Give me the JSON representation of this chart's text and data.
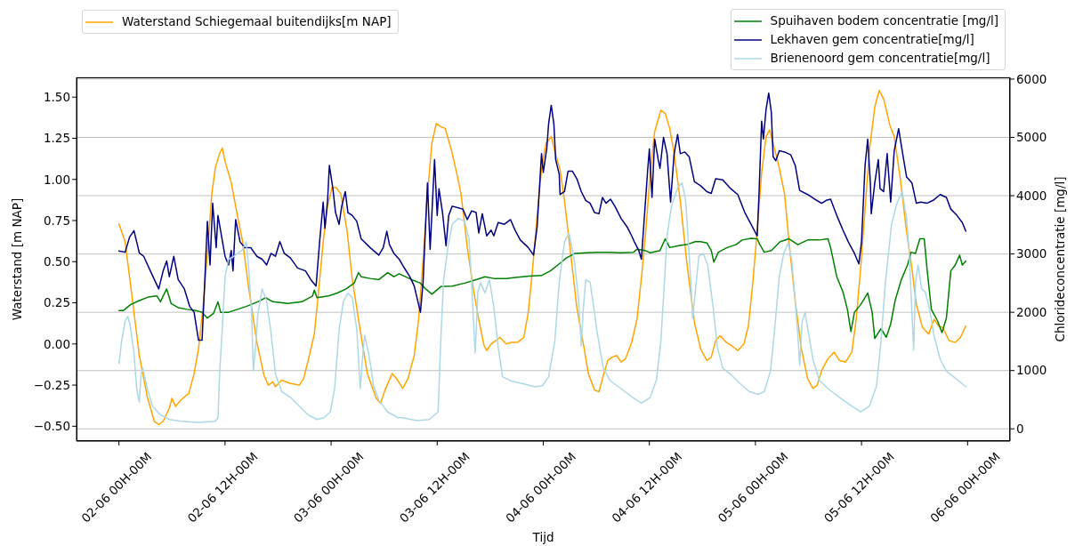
{
  "chart_data": {
    "type": "line",
    "xlabel": "Tijd",
    "ylabel": "Waterstand [m NAP]",
    "y2label": "Chlorideconcentratie [mg/l]",
    "xlim": [
      "--06-01T19:12",
      "--06-06T04:48"
    ],
    "xticks": [
      {
        "value": "--06-02T00:00",
        "label": "02-06 00H-00M"
      },
      {
        "value": "--06-02T12:00",
        "label": "02-06 12H-00M"
      },
      {
        "value": "--06-03T00:00",
        "label": "03-06 00H-00M"
      },
      {
        "value": "--06-03T12:00",
        "label": "03-06 12H-00M"
      },
      {
        "value": "--06-04T00:00",
        "label": "04-06 00H-00M"
      },
      {
        "value": "--06-04T12:00",
        "label": "04-06 12H-00M"
      },
      {
        "value": "--06-05T00:00",
        "label": "05-06 00H-00M"
      },
      {
        "value": "--06-05T12:00",
        "label": "05-06 12H-00M"
      },
      {
        "value": "--06-06T00:00",
        "label": "06-06 00H-00M"
      }
    ],
    "ylim": [
      -0.59,
      1.62
    ],
    "yticks": [
      {
        "value": -0.5,
        "label": "−0.50"
      },
      {
        "value": -0.25,
        "label": "−0.25"
      },
      {
        "value": 0,
        "label": "0.00"
      },
      {
        "value": 0.25,
        "label": "0.25"
      },
      {
        "value": 0.5,
        "label": "0.50"
      },
      {
        "value": 0.75,
        "label": "0.75"
      },
      {
        "value": 1,
        "label": "1.00"
      },
      {
        "value": 1.25,
        "label": "1.25"
      },
      {
        "value": 1.5,
        "label": "1.50"
      }
    ],
    "y2lim": [
      -210,
      6030
    ],
    "y2ticks": [
      0,
      1000,
      2000,
      3000,
      4000,
      5000,
      6000
    ],
    "grid": "y2",
    "legend": "top",
    "series": [
      {
        "name": "Waterstand Schiegemaal buitendijks[m NAP]",
        "color": "#ffa500",
        "x": [
          "--06-02T00:00",
          "--06-02T00:42",
          "--06-02T01:30",
          "--06-02T02:18",
          "--06-02T03:12",
          "--06-02T04:00",
          "--06-02T04:30",
          "--06-02T05:00",
          "--06-02T05:42",
          "--06-02T06:00",
          "--06-02T06:24",
          "--06-02T07:00",
          "--06-02T07:54",
          "--06-02T08:30",
          "--06-02T09:00",
          "--06-02T09:30",
          "--06-02T10:00",
          "--06-02T10:30",
          "--06-02T10:54",
          "--06-02T11:24",
          "--06-02T11:42",
          "--06-02T12:00",
          "--06-02T12:42",
          "--06-02T13:24",
          "--06-02T14:00",
          "--06-02T14:42",
          "--06-02T15:36",
          "--06-02T16:24",
          "--06-02T16:54",
          "--06-02T17:24",
          "--06-02T17:42",
          "--06-02T18:24",
          "--06-02T19:24",
          "--06-02T20:24",
          "--06-02T20:54",
          "--06-02T21:24",
          "--06-02T22:06",
          "--06-02T22:36",
          "--06-02T23:06",
          "--06-02T23:36",
          "--06-03T00:06",
          "--06-03T00:36",
          "--06-03T01:06",
          "--06-03T01:48",
          "--06-03T02:24",
          "--06-03T03:18",
          "--06-03T04:06",
          "--06-03T05:06",
          "--06-03T05:36",
          "--06-03T06:06",
          "--06-03T06:54",
          "--06-03T07:24",
          "--06-03T08:06",
          "--06-03T08:42",
          "--06-03T09:24",
          "--06-03T09:54",
          "--06-03T10:24",
          "--06-03T10:54",
          "--06-03T11:24",
          "--06-03T11:54",
          "--06-03T12:24",
          "--06-03T12:54",
          "--06-03T13:36",
          "--06-03T14:12",
          "--06-03T14:42",
          "--06-03T15:24",
          "--06-03T16:06",
          "--06-03T16:42",
          "--06-03T17:18",
          "--06-03T17:36",
          "--06-03T18:06",
          "--06-03T18:36",
          "--06-03T19:06",
          "--06-03T19:48",
          "--06-03T20:24",
          "--06-03T21:06",
          "--06-03T21:48",
          "--06-03T22:18",
          "--06-03T22:48",
          "--06-03T23:18",
          "--06-03T23:48",
          "--06-04T00:18",
          "--06-04T00:54",
          "--06-04T01:24",
          "--06-04T01:54",
          "--06-04T02:24",
          "--06-04T03:06",
          "--06-04T03:48",
          "--06-04T04:30",
          "--06-04T05:06",
          "--06-04T05:48",
          "--06-04T06:18",
          "--06-04T06:48",
          "--06-04T07:18",
          "--06-04T07:48",
          "--06-04T08:18",
          "--06-04T08:48",
          "--06-04T09:18",
          "--06-04T10:00",
          "--06-04T10:36",
          "--06-04T11:06",
          "--06-04T11:36",
          "--06-04T12:06",
          "--06-04T12:36",
          "--06-04T13:18",
          "--06-04T13:48",
          "--06-04T14:18",
          "--06-04T14:48",
          "--06-04T15:30",
          "--06-04T16:12",
          "--06-04T17:06",
          "--06-04T17:48",
          "--06-04T18:30",
          "--06-04T19:00",
          "--06-04T19:30",
          "--06-04T20:00",
          "--06-04T20:42",
          "--06-04T21:18",
          "--06-04T22:00",
          "--06-04T22:42",
          "--06-04T23:12",
          "--06-04T23:42",
          "--06-05T00:12",
          "--06-05T00:42",
          "--06-05T01:12",
          "--06-05T01:36",
          "--06-05T02:00",
          "--06-05T02:42",
          "--06-05T03:18",
          "--06-05T03:48",
          "--06-05T04:30",
          "--06-05T05:12",
          "--06-05T05:54",
          "--06-05T06:30",
          "--06-05T07:00",
          "--06-05T07:30",
          "--06-05T08:12",
          "--06-05T08:54",
          "--06-05T09:30",
          "--06-05T10:12",
          "--06-05T10:54",
          "--06-05T11:24",
          "--06-05T11:54",
          "--06-05T12:24",
          "--06-05T12:54",
          "--06-05T13:30",
          "--06-05T14:00",
          "--06-05T14:30",
          "--06-05T15:12",
          "--06-05T15:42",
          "--06-05T16:24",
          "--06-05T17:06",
          "--06-05T17:42",
          "--06-05T18:12",
          "--06-05T18:54",
          "--06-05T19:36",
          "--06-05T20:12",
          "--06-05T20:42",
          "--06-05T21:12",
          "--06-05T21:54",
          "--06-05T22:36",
          "--06-05T23:12",
          "--06-05T23:48"
        ],
        "values": [
          0.73,
          0.62,
          0.28,
          -0.07,
          -0.32,
          -0.47,
          -0.49,
          -0.47,
          -0.39,
          -0.33,
          -0.38,
          -0.34,
          -0.3,
          -0.18,
          -0.03,
          0.22,
          0.55,
          0.91,
          1.07,
          1.16,
          1.19,
          1.11,
          0.98,
          0.78,
          0.62,
          0.33,
          0.01,
          -0.19,
          -0.25,
          -0.23,
          -0.26,
          -0.22,
          -0.24,
          -0.25,
          -0.21,
          -0.1,
          0.06,
          0.33,
          0.62,
          0.84,
          0.95,
          0.95,
          0.91,
          0.69,
          0.39,
          0.08,
          -0.18,
          -0.33,
          -0.36,
          -0.28,
          -0.18,
          -0.21,
          -0.27,
          -0.21,
          -0.07,
          0.15,
          0.51,
          0.91,
          1.22,
          1.34,
          1.32,
          1.31,
          1.18,
          1.04,
          0.91,
          0.59,
          0.33,
          0.15,
          -0.01,
          -0.04,
          0.0,
          0.02,
          0.04,
          0.0,
          0.01,
          0.01,
          0.04,
          0.19,
          0.46,
          0.78,
          1.06,
          1.22,
          1.26,
          1.15,
          1.06,
          0.87,
          0.55,
          0.22,
          0.01,
          -0.18,
          -0.28,
          -0.29,
          -0.19,
          -0.1,
          -0.08,
          -0.07,
          -0.11,
          -0.09,
          0.01,
          0.15,
          0.4,
          0.69,
          1.04,
          1.29,
          1.42,
          1.4,
          1.31,
          1.16,
          0.87,
          0.51,
          0.13,
          -0.03,
          -0.1,
          -0.08,
          0.02,
          0.05,
          0.01,
          -0.01,
          -0.04,
          0.0,
          0.11,
          0.37,
          0.69,
          1.04,
          1.26,
          1.3,
          1.22,
          1.07,
          0.91,
          0.62,
          0.26,
          -0.03,
          -0.21,
          -0.27,
          -0.25,
          -0.16,
          -0.09,
          -0.05,
          -0.1,
          -0.11,
          -0.05,
          0.15,
          0.46,
          0.82,
          1.18,
          1.44,
          1.54,
          1.49,
          1.33,
          1.26,
          1.0,
          0.68,
          0.46,
          0.24,
          0.1,
          0.06,
          0.15,
          0.11,
          0.1,
          0.02,
          0.01,
          0.04,
          0.11
        ]
      },
      {
        "name": "Spuihaven bodem concentratie [mg/l]",
        "color": "#008000",
        "axis": "y2",
        "x": [
          "--06-02T00:00",
          "--06-02T00:30",
          "--06-02T01:18",
          "--06-02T02:18",
          "--06-02T03:18",
          "--06-02T04:18",
          "--06-02T04:42",
          "--06-02T05:00",
          "--06-02T05:24",
          "--06-02T05:54",
          "--06-02T06:42",
          "--06-02T07:42",
          "--06-02T08:42",
          "--06-02T09:24",
          "--06-02T10:00",
          "--06-02T10:42",
          "--06-02T11:12",
          "--06-02T11:30",
          "--06-02T12:24",
          "--06-02T13:24",
          "--06-02T14:24",
          "--06-02T15:42",
          "--06-02T16:36",
          "--06-02T17:24",
          "--06-02T19:06",
          "--06-02T20:42",
          "--06-02T21:54",
          "--06-02T22:06",
          "--06-02T22:24",
          "--06-02T23:42",
          "--06-03T00:42",
          "--06-03T01:42",
          "--06-03T02:36",
          "--06-03T03:06",
          "--06-03T03:24",
          "--06-03T04:24",
          "--06-03T05:24",
          "--06-03T06:24",
          "--06-03T07:06",
          "--06-03T07:42",
          "--06-03T08:24",
          "--06-03T09:06",
          "--06-03T10:06",
          "--06-03T10:42",
          "--06-03T11:24",
          "--06-03T12:24",
          "--06-03T13:42",
          "--06-03T15:06",
          "--06-03T16:24",
          "--06-03T17:24",
          "--06-03T18:24",
          "--06-03T19:48",
          "--06-03T21:06",
          "--06-03T22:24",
          "--06-03T23:48",
          "--06-04T00:48",
          "--06-04T01:48",
          "--06-04T02:36",
          "--06-04T03:36",
          "--06-04T04:48",
          "--06-04T06:06",
          "--06-04T07:30",
          "--06-04T08:48",
          "--06-04T10:12",
          "--06-04T10:36",
          "--06-04T11:30",
          "--06-04T12:06",
          "--06-04T13:12",
          "--06-04T13:48",
          "--06-04T14:18",
          "--06-04T15:12",
          "--06-04T16:12",
          "--06-04T17:12",
          "--06-04T17:48",
          "--06-04T18:30",
          "--06-04T19:00",
          "--06-04T19:18",
          "--06-04T19:48",
          "--06-04T20:48",
          "--06-04T21:48",
          "--06-04T22:30",
          "--06-04T23:30",
          "--06-05T00:12",
          "--06-05T00:30",
          "--06-05T01:00",
          "--06-05T01:48",
          "--06-05T02:48",
          "--06-05T03:48",
          "--06-05T04:48",
          "--06-05T05:54",
          "--06-05T07:12",
          "--06-05T08:12",
          "--06-05T08:30",
          "--06-05T09:12",
          "--06-05T09:54",
          "--06-05T10:24",
          "--06-05T10:48",
          "--06-05T11:12",
          "--06-05T11:54",
          "--06-05T12:42",
          "--06-05T13:12",
          "--06-05T13:30",
          "--06-05T14:12",
          "--06-05T14:48",
          "--06-05T15:18",
          "--06-05T15:48",
          "--06-05T16:30",
          "--06-05T17:12",
          "--06-05T17:36",
          "--06-05T18:06",
          "--06-05T18:36",
          "--06-05T19:06",
          "--06-05T19:24",
          "--06-05T19:54",
          "--06-05T20:36",
          "--06-05T21:06",
          "--06-05T21:36",
          "--06-05T22:06",
          "--06-05T22:36",
          "--06-05T23:06",
          "--06-05T23:24",
          "--06-05T23:48"
        ],
        "values": [
          2030,
          2030,
          2130,
          2200,
          2260,
          2280,
          2180,
          2280,
          2400,
          2150,
          2080,
          2050,
          2030,
          2000,
          1900,
          1980,
          2180,
          2000,
          2000,
          2050,
          2100,
          2180,
          2250,
          2180,
          2150,
          2180,
          2280,
          2380,
          2250,
          2280,
          2330,
          2400,
          2500,
          2680,
          2610,
          2580,
          2560,
          2680,
          2610,
          2660,
          2610,
          2560,
          2500,
          2400,
          2310,
          2440,
          2450,
          2500,
          2560,
          2610,
          2580,
          2580,
          2600,
          2620,
          2630,
          2710,
          2830,
          2930,
          3010,
          3020,
          3030,
          3030,
          3020,
          3030,
          3080,
          3060,
          3020,
          3060,
          3260,
          3110,
          3140,
          3160,
          3210,
          3210,
          3190,
          3060,
          2860,
          3030,
          3110,
          3160,
          3240,
          3270,
          3260,
          3160,
          3030,
          3060,
          3210,
          3260,
          3160,
          3240,
          3240,
          3260,
          3110,
          2610,
          2350,
          2050,
          1670,
          2000,
          2130,
          2330,
          2000,
          1550,
          1720,
          1570,
          1800,
          2200,
          2560,
          2810,
          3030,
          3010,
          3260,
          3260,
          2760,
          2050,
          1850,
          1650,
          1900,
          2710,
          2810,
          2980,
          2810,
          2880
        ]
      },
      {
        "name": "Lekhaven gem concentratie[mg/l]",
        "color": "#000080",
        "axis": "y2",
        "x": [
          "--06-02T00:00",
          "--06-02T00:42",
          "--06-02T01:12",
          "--06-02T01:42",
          "--06-02T02:00",
          "--06-02T02:18",
          "--06-02T02:48",
          "--06-02T03:42",
          "--06-02T04:30",
          "--06-02T05:00",
          "--06-02T05:24",
          "--06-02T05:42",
          "--06-02T06:12",
          "--06-02T06:42",
          "--06-02T07:24",
          "--06-02T08:00",
          "--06-02T08:30",
          "--06-02T09:00",
          "--06-02T09:24",
          "--06-02T09:42",
          "--06-02T10:00",
          "--06-02T10:18",
          "--06-02T10:36",
          "--06-02T11:00",
          "--06-02T11:12",
          "--06-02T11:36",
          "--06-02T12:00",
          "--06-02T12:24",
          "--06-02T12:42",
          "--06-02T12:54",
          "--06-02T13:12",
          "--06-02T13:42",
          "--06-02T14:12",
          "--06-02T14:54",
          "--06-02T15:36",
          "--06-02T16:12",
          "--06-02T16:42",
          "--06-02T17:12",
          "--06-02T17:42",
          "--06-02T18:12",
          "--06-02T18:42",
          "--06-02T19:24",
          "--06-02T20:12",
          "--06-02T21:06",
          "--06-02T21:42",
          "--06-02T22:18",
          "--06-02T22:42",
          "--06-02T23:06",
          "--06-02T23:18",
          "--06-02T23:36",
          "--06-02T23:48",
          "--06-03T00:12",
          "--06-03T00:30",
          "--06-03T00:54",
          "--06-03T01:12",
          "--06-03T01:36",
          "--06-03T01:54",
          "--06-03T02:24",
          "--06-03T02:54",
          "--06-03T03:24",
          "--06-03T04:24",
          "--06-03T05:24",
          "--06-03T05:54",
          "--06-03T06:18",
          "--06-03T06:36",
          "--06-03T07:06",
          "--06-03T07:42",
          "--06-03T08:12",
          "--06-03T08:54",
          "--06-03T09:24",
          "--06-03T10:06",
          "--06-03T10:24",
          "--06-03T10:54",
          "--06-03T11:12",
          "--06-03T11:42",
          "--06-03T12:00",
          "--06-03T12:12",
          "--06-03T12:36",
          "--06-03T13:00",
          "--06-03T13:18",
          "--06-03T13:42",
          "--06-03T14:24",
          "--06-03T14:54",
          "--06-03T15:24",
          "--06-03T15:54",
          "--06-03T16:24",
          "--06-03T16:42",
          "--06-03T17:06",
          "--06-03T17:36",
          "--06-03T18:06",
          "--06-03T18:24",
          "--06-03T18:54",
          "--06-03T19:36",
          "--06-03T20:18",
          "--06-03T20:48",
          "--06-03T21:24",
          "--06-03T22:18",
          "--06-03T22:54",
          "--06-03T23:18",
          "--06-03T23:48",
          "--06-04T00:00",
          "--06-04T00:24",
          "--06-04T00:36",
          "--06-04T00:54",
          "--06-04T01:12",
          "--06-04T01:24",
          "--06-04T01:48",
          "--06-04T01:54",
          "--06-04T02:24",
          "--06-04T02:48",
          "--06-04T03:18",
          "--06-04T03:48",
          "--06-04T04:18",
          "--06-04T04:48",
          "--06-04T05:18",
          "--06-04T05:48",
          "--06-04T06:18",
          "--06-04T06:42",
          "--06-04T07:06",
          "--06-04T07:36",
          "--06-04T08:06",
          "--06-04T08:48",
          "--06-04T09:30",
          "--06-04T10:00",
          "--06-04T10:18",
          "--06-04T10:48",
          "--06-04T11:06",
          "--06-04T11:24",
          "--06-04T11:48",
          "--06-04T12:00",
          "--06-04T12:18",
          "--06-04T12:36",
          "--06-04T13:00",
          "--06-04T13:12",
          "--06-04T13:36",
          "--06-04T14:00",
          "--06-04T14:24",
          "--06-04T14:48",
          "--06-04T15:12",
          "--06-04T15:30",
          "--06-04T16:00",
          "--06-04T16:30",
          "--06-04T17:06",
          "--06-04T17:48",
          "--06-04T18:30",
          "--06-04T19:00",
          "--06-04T19:30",
          "--06-04T20:18",
          "--06-04T21:12",
          "--06-04T22:00",
          "--06-04T22:48",
          "--06-04T23:30",
          "--06-05T00:12",
          "--06-05T00:24",
          "--06-05T00:42",
          "--06-05T00:54",
          "--06-05T01:12",
          "--06-05T01:30",
          "--06-05T01:48",
          "--06-05T02:00",
          "--06-05T02:18",
          "--06-05T02:42",
          "--06-05T03:18",
          "--06-05T04:00",
          "--06-05T04:30",
          "--06-05T05:00",
          "--06-05T05:54",
          "--06-05T06:42",
          "--06-05T07:30",
          "--06-05T08:00",
          "--06-05T08:30",
          "--06-05T09:12",
          "--06-05T09:54",
          "--06-05T10:30",
          "--06-05T11:12",
          "--06-05T11:42",
          "--06-05T12:00",
          "--06-05T12:24",
          "--06-05T12:42",
          "--06-05T13:00",
          "--06-05T13:06",
          "--06-05T13:30",
          "--06-05T13:54",
          "--06-05T14:06",
          "--06-05T14:30",
          "--06-05T14:54",
          "--06-05T15:18",
          "--06-05T15:42",
          "--06-05T16:12",
          "--06-05T16:36",
          "--06-05T17:06",
          "--06-05T17:42",
          "--06-05T18:12",
          "--06-05T18:42",
          "--06-05T19:24",
          "--06-05T20:06",
          "--06-05T20:54",
          "--06-05T21:36",
          "--06-05T22:06",
          "--06-05T22:48",
          "--06-05T23:24",
          "--06-05T23:48"
        ],
        "values": [
          3050,
          3030,
          3290,
          3400,
          3210,
          3020,
          2960,
          2660,
          2400,
          2710,
          2880,
          2610,
          2960,
          2560,
          2400,
          2100,
          2000,
          1520,
          1520,
          2510,
          3560,
          2810,
          3870,
          3110,
          3660,
          3310,
          2960,
          2810,
          3060,
          2710,
          3590,
          3210,
          3110,
          3110,
          2960,
          2910,
          2810,
          3010,
          2960,
          3210,
          3010,
          2930,
          2760,
          2710,
          2560,
          2450,
          3210,
          3890,
          3440,
          3920,
          4520,
          4120,
          3710,
          3510,
          3820,
          4070,
          3710,
          3660,
          3560,
          3260,
          3110,
          2980,
          3110,
          3390,
          3160,
          3010,
          2910,
          2780,
          2610,
          2450,
          2000,
          2510,
          4220,
          3080,
          4620,
          3660,
          4120,
          3710,
          3140,
          3660,
          3820,
          3790,
          3770,
          3590,
          3740,
          3710,
          3360,
          3690,
          3310,
          3410,
          3310,
          3540,
          3510,
          3590,
          3410,
          3240,
          3110,
          2980,
          3460,
          4720,
          4400,
          4820,
          5230,
          5550,
          5230,
          4620,
          4370,
          4020,
          4070,
          4420,
          4420,
          4290,
          4070,
          3920,
          3870,
          3710,
          3690,
          3970,
          3870,
          3940,
          3820,
          3610,
          3460,
          3310,
          3210,
          3060,
          2910,
          3560,
          4420,
          4800,
          3970,
          4970,
          4620,
          4470,
          5000,
          4720,
          3890,
          4720,
          5050,
          4720,
          4750,
          4670,
          4240,
          4170,
          4070,
          4040,
          4290,
          4270,
          4120,
          4020,
          3710,
          3510,
          3310,
          4020,
          5280,
          4970,
          5480,
          5760,
          5430,
          4670,
          4600,
          4770,
          4750,
          4700,
          4520,
          4090,
          4020,
          3940,
          3870,
          3920,
          3940,
          3660,
          3410,
          3210,
          3010,
          2830,
          3210,
          4520,
          4970,
          4220,
          3690,
          4220,
          4620,
          4120,
          4070,
          4720,
          3890,
          4770,
          5150,
          4770,
          4320,
          4220,
          3870,
          3890,
          3870,
          3920,
          4020,
          3970,
          3770,
          3660,
          3540,
          3390
        ]
      },
      {
        "name": "Brienenoord gem concentratie[mg/l]",
        "color": "#add8e6",
        "axis": "y2",
        "x": [
          "--06-02T00:00",
          "--06-02T00:18",
          "--06-02T00:42",
          "--06-02T01:00",
          "--06-02T01:18",
          "--06-02T01:42",
          "--06-02T02:00",
          "--06-02T02:18",
          "--06-02T02:30",
          "--06-02T02:42",
          "--06-02T03:12",
          "--06-02T03:48",
          "--06-02T04:42",
          "--06-02T05:42",
          "--06-02T07:00",
          "--06-02T09:00",
          "--06-02T10:54",
          "--06-02T11:12",
          "--06-02T11:24",
          "--06-02T11:42",
          "--06-02T12:00",
          "--06-02T12:24",
          "--06-02T13:00",
          "--06-02T13:54",
          "--06-02T14:24",
          "--06-02T14:42",
          "--06-02T15:00",
          "--06-02T15:12",
          "--06-02T15:30",
          "--06-02T15:42",
          "--06-02T16:12",
          "--06-02T16:42",
          "--06-02T17:12",
          "--06-02T17:42",
          "--06-02T18:24",
          "--06-02T19:24",
          "--06-02T20:24",
          "--06-02T21:24",
          "--06-02T22:24",
          "--06-02T23:12",
          "--06-02T23:54",
          "--06-03T00:24",
          "--06-03T00:54",
          "--06-03T01:24",
          "--06-03T01:54",
          "--06-03T02:24",
          "--06-03T02:54",
          "--06-03T03:18",
          "--06-03T03:36",
          "--06-03T03:48",
          "--06-03T04:18",
          "--06-03T04:48",
          "--06-03T05:24",
          "--06-03T06:24",
          "--06-03T07:36",
          "--06-03T08:06",
          "--06-03T09:42",
          "--06-03T11:06",
          "--06-03T12:06",
          "--06-03T12:24",
          "--06-03T12:42",
          "--06-03T13:12",
          "--06-03T13:42",
          "--06-03T14:24",
          "--06-03T15:06",
          "--06-03T15:36",
          "--06-03T15:54",
          "--06-03T16:06",
          "--06-03T16:18",
          "--06-03T16:36",
          "--06-03T16:54",
          "--06-03T17:24",
          "--06-03T17:54",
          "--06-03T18:24",
          "--06-03T18:54",
          "--06-03T19:24",
          "--06-03T20:24",
          "--06-03T21:48",
          "--06-03T23:06",
          "--06-03T23:54",
          "--06-04T00:36",
          "--06-04T01:18",
          "--06-04T01:48",
          "--06-04T02:24",
          "--06-04T02:54",
          "--06-04T03:30",
          "--06-04T04:00",
          "--06-04T04:18",
          "--06-04T04:30",
          "--06-04T04:48",
          "--06-04T05:18",
          "--06-04T05:36",
          "--06-04T06:06",
          "--06-04T06:48",
          "--06-04T07:36",
          "--06-04T08:48",
          "--06-04T10:06",
          "--06-04T11:06",
          "--06-04T12:06",
          "--06-04T12:48",
          "--06-04T13:18",
          "--06-04T13:42",
          "--06-04T14:00",
          "--06-04T14:30",
          "--06-04T15:12",
          "--06-04T15:42",
          "--06-04T16:06",
          "--06-04T16:36",
          "--06-04T16:54",
          "--06-04T17:18",
          "--06-04T17:36",
          "--06-04T18:06",
          "--06-04T18:36",
          "--06-04T19:12",
          "--06-04T19:42",
          "--06-04T20:18",
          "--06-04T21:18",
          "--06-04T22:18",
          "--06-04T23:18",
          "--06-05T00:18",
          "--06-05T01:00",
          "--06-05T01:42",
          "--06-05T02:12",
          "--06-05T02:42",
          "--06-05T03:12",
          "--06-05T03:42",
          "--06-05T04:06",
          "--06-05T04:30",
          "--06-05T04:48",
          "--06-05T05:00",
          "--06-05T05:18",
          "--06-05T05:36",
          "--06-05T06:00",
          "--06-05T06:30",
          "--06-05T07:12",
          "--06-05T08:12",
          "--06-05T09:30",
          "--06-05T10:54",
          "--06-05T11:54",
          "--06-05T12:54",
          "--06-05T13:42",
          "--06-05T14:12",
          "--06-05T14:42",
          "--06-05T15:24",
          "--06-05T16:00",
          "--06-05T16:36",
          "--06-05T17:06",
          "--06-05T17:24",
          "--06-05T17:42",
          "--06-05T17:54",
          "--06-05T18:06",
          "--06-05T18:24",
          "--06-05T18:48",
          "--06-05T19:12",
          "--06-05T19:42",
          "--06-05T20:12",
          "--06-05T20:54",
          "--06-05T21:36",
          "--06-05T22:36",
          "--06-05T23:48"
        ],
        "values": [
          1120,
          1500,
          1850,
          1930,
          1750,
          1300,
          690,
          460,
          940,
          1040,
          690,
          390,
          240,
          160,
          130,
          110,
          130,
          190,
          990,
          1750,
          2610,
          2910,
          2960,
          3060,
          3210,
          2710,
          2000,
          990,
          1500,
          1950,
          2400,
          2200,
          1650,
          940,
          640,
          540,
          390,
          240,
          160,
          190,
          290,
          690,
          1700,
          2200,
          2330,
          2250,
          1700,
          690,
          1300,
          1600,
          1250,
          740,
          490,
          290,
          190,
          190,
          140,
          160,
          290,
          1500,
          2510,
          3110,
          3510,
          3610,
          3560,
          3260,
          2510,
          1850,
          1300,
          2350,
          2510,
          2330,
          2560,
          2100,
          1400,
          890,
          820,
          770,
          720,
          740,
          890,
          1500,
          2510,
          3210,
          3360,
          2910,
          2200,
          1420,
          2000,
          2560,
          2510,
          2200,
          1650,
          1040,
          820,
          690,
          540,
          440,
          540,
          840,
          1500,
          2510,
          3310,
          3820,
          4140,
          4220,
          3920,
          2760,
          1900,
          2510,
          2960,
          3010,
          2810,
          2100,
          1400,
          1040,
          920,
          770,
          640,
          590,
          640,
          990,
          1750,
          2610,
          3010,
          3190,
          2910,
          2200,
          1600,
          1090,
          1850,
          2000,
          1650,
          1190,
          840,
          690,
          540,
          390,
          290,
          390,
          740,
          1500,
          2510,
          3510,
          3870,
          4070,
          3610,
          3010,
          2000,
          1350,
          2510,
          2810,
          2400,
          2350,
          2050,
          1600,
          1190,
          990,
          870,
          720
        ]
      }
    ]
  }
}
